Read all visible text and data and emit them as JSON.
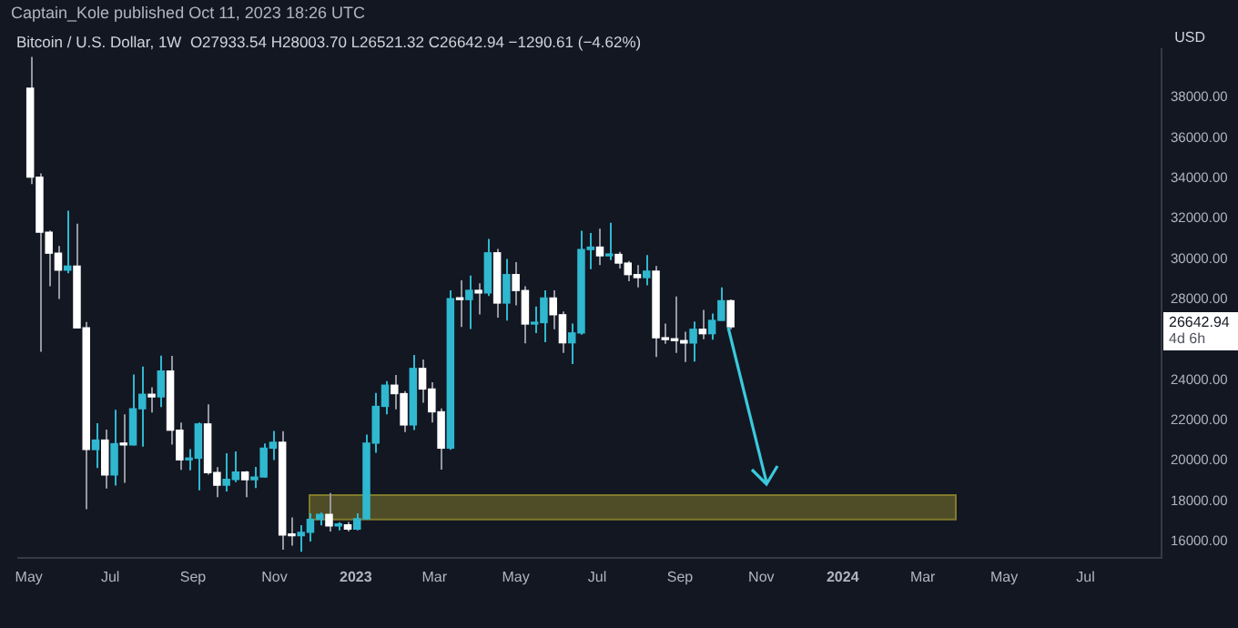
{
  "chart_data": {
    "type": "candlestick",
    "title": "Bitcoin / U.S. Dollar, 1W",
    "subtitle": "O27933.54  H28003.70  L26521.32  C26642.94  −1290.61 (−4.62%)",
    "ylabel": "USD",
    "annotations": [
      "Captain_Kole published Oct 11, 2023 18:26 UTC",
      "26642.94",
      "4d 6h"
    ],
    "x": [
      "2022-05-02",
      "2022-05-09",
      "2022-05-16",
      "2022-05-23",
      "2022-05-30",
      "2022-06-06",
      "2022-06-13",
      "2022-06-20",
      "2022-06-27",
      "2022-07-04",
      "2022-07-11",
      "2022-07-18",
      "2022-07-25",
      "2022-08-01",
      "2022-08-08",
      "2022-08-15",
      "2022-08-22",
      "2022-08-29",
      "2022-09-05",
      "2022-09-12",
      "2022-09-19",
      "2022-09-26",
      "2022-10-03",
      "2022-10-10",
      "2022-10-17",
      "2022-10-24",
      "2022-10-31",
      "2022-11-07",
      "2022-11-14",
      "2022-11-21",
      "2022-11-28",
      "2022-12-05",
      "2022-12-12",
      "2022-12-19",
      "2022-12-26",
      "2023-01-02",
      "2023-01-09",
      "2023-01-16",
      "2023-01-23",
      "2023-01-30",
      "2023-02-06",
      "2023-02-13",
      "2023-02-20",
      "2023-02-27",
      "2023-03-06",
      "2023-03-13",
      "2023-03-20",
      "2023-03-27",
      "2023-04-03",
      "2023-04-10",
      "2023-04-17",
      "2023-04-24",
      "2023-05-01",
      "2023-05-08",
      "2023-05-15",
      "2023-05-22",
      "2023-05-29",
      "2023-06-05",
      "2023-06-12",
      "2023-06-19",
      "2023-06-26",
      "2023-07-03",
      "2023-07-10",
      "2023-07-17",
      "2023-07-24",
      "2023-07-31",
      "2023-08-07",
      "2023-08-14",
      "2023-08-21",
      "2023-08-28",
      "2023-09-04",
      "2023-09-11",
      "2023-09-18",
      "2023-09-25",
      "2023-10-02",
      "2023-10-09"
    ],
    "ohlc": [
      [
        38470,
        40020,
        33710,
        34060
      ],
      [
        34060,
        34240,
        25400,
        31330
      ],
      [
        31330,
        31420,
        28650,
        30290
      ],
      [
        30290,
        30650,
        28020,
        29450
      ],
      [
        29450,
        32400,
        29300,
        29650
      ],
      [
        29650,
        31750,
        26560,
        26590
      ],
      [
        26590,
        26880,
        17600,
        20560
      ],
      [
        20560,
        21870,
        19640,
        21030
      ],
      [
        21030,
        21550,
        18630,
        19300
      ],
      [
        19300,
        22530,
        18780,
        20850
      ],
      [
        20850,
        22300,
        18910,
        20790
      ],
      [
        20790,
        24280,
        20760,
        22580
      ],
      [
        22580,
        24670,
        20700,
        23300
      ],
      [
        23300,
        23650,
        22400,
        23170
      ],
      [
        23170,
        25210,
        22670,
        24450
      ],
      [
        24450,
        25200,
        20800,
        21520
      ],
      [
        21520,
        21900,
        19550,
        20050
      ],
      [
        20050,
        20580,
        19530,
        20130
      ],
      [
        20130,
        21900,
        18540,
        21830
      ],
      [
        21830,
        22800,
        19320,
        19420
      ],
      [
        19420,
        19690,
        18200,
        18800
      ],
      [
        18800,
        20380,
        18480,
        19080
      ],
      [
        19080,
        20470,
        18950,
        19440
      ],
      [
        19440,
        19500,
        18200,
        19070
      ],
      [
        19070,
        19700,
        18650,
        19200
      ],
      [
        19200,
        20860,
        19180,
        20630
      ],
      [
        20630,
        21480,
        20040,
        20920
      ],
      [
        20920,
        21470,
        15600,
        16320
      ],
      [
        16330,
        17200,
        15800,
        16290
      ],
      [
        16290,
        16810,
        15500,
        16460
      ],
      [
        16460,
        17400,
        16000,
        17100
      ],
      [
        17100,
        17430,
        16800,
        17350
      ],
      [
        17350,
        18400,
        16500,
        16780
      ],
      [
        16780,
        16960,
        16550,
        16830
      ],
      [
        16830,
        16970,
        16500,
        16620
      ],
      [
        16620,
        17400,
        16560,
        17130
      ],
      [
        17130,
        21300,
        17100,
        20880
      ],
      [
        20880,
        23370,
        20400,
        22700
      ],
      [
        22700,
        23950,
        22300,
        23750
      ],
      [
        23750,
        24250,
        22550,
        23330
      ],
      [
        23330,
        23450,
        21430,
        21780
      ],
      [
        21780,
        25250,
        21530,
        24580
      ],
      [
        24580,
        25020,
        22880,
        23560
      ],
      [
        23560,
        23890,
        21900,
        22430
      ],
      [
        22430,
        22600,
        19570,
        20630
      ],
      [
        20630,
        28450,
        20550,
        28040
      ],
      [
        28040,
        28950,
        26630,
        27990
      ],
      [
        27990,
        29180,
        26530,
        28450
      ],
      [
        28450,
        28800,
        27250,
        28320
      ],
      [
        28320,
        31000,
        28170,
        30310
      ],
      [
        30310,
        30500,
        27100,
        27820
      ],
      [
        27820,
        30000,
        26950,
        29230
      ],
      [
        29230,
        29850,
        27700,
        28440
      ],
      [
        28440,
        28650,
        25820,
        26780
      ],
      [
        26780,
        27650,
        26330,
        26850
      ],
      [
        26850,
        28450,
        25880,
        28070
      ],
      [
        28070,
        28450,
        26520,
        27240
      ],
      [
        27240,
        27400,
        25350,
        25850
      ],
      [
        25850,
        26800,
        24800,
        26340
      ],
      [
        26340,
        31400,
        26250,
        30470
      ],
      [
        30470,
        31290,
        29500,
        30590
      ],
      [
        30590,
        31500,
        29700,
        30160
      ],
      [
        30160,
        31800,
        29950,
        30230
      ],
      [
        30230,
        30350,
        29530,
        29800
      ],
      [
        29800,
        29900,
        28900,
        29230
      ],
      [
        29230,
        29700,
        28600,
        29080
      ],
      [
        29080,
        30200,
        28700,
        29400
      ],
      [
        29400,
        29660,
        25150,
        26100
      ],
      [
        26100,
        26800,
        25800,
        26010
      ],
      [
        26010,
        28150,
        25350,
        25960
      ],
      [
        25960,
        26400,
        24900,
        25840
      ],
      [
        25840,
        26900,
        24920,
        26520
      ],
      [
        26520,
        27480,
        26030,
        26300
      ],
      [
        26300,
        27300,
        26000,
        26960
      ],
      [
        26960,
        28600,
        26950,
        27933.54
      ],
      [
        27933.54,
        28003.7,
        26521.32,
        26642.94
      ]
    ],
    "colors": [
      "#ffffff",
      "#ffffff",
      "#ffffff",
      "#ffffff",
      "#2fb8d0",
      "#ffffff",
      "#ffffff",
      "#2fb8d0",
      "#ffffff",
      "#2fb8d0",
      "#ffffff",
      "#2fb8d0",
      "#2fb8d0",
      "#ffffff",
      "#2fb8d0",
      "#ffffff",
      "#ffffff",
      "#2fb8d0",
      "#2fb8d0",
      "#ffffff",
      "#ffffff",
      "#2fb8d0",
      "#2fb8d0",
      "#ffffff",
      "#2fb8d0",
      "#2fb8d0",
      "#2fb8d0",
      "#ffffff",
      "#ffffff",
      "#2fb8d0",
      "#2fb8d0",
      "#2fb8d0",
      "#ffffff",
      "#2fb8d0",
      "#ffffff",
      "#2fb8d0",
      "#2fb8d0",
      "#2fb8d0",
      "#2fb8d0",
      "#ffffff",
      "#ffffff",
      "#2fb8d0",
      "#ffffff",
      "#ffffff",
      "#ffffff",
      "#2fb8d0",
      "#ffffff",
      "#2fb8d0",
      "#ffffff",
      "#2fb8d0",
      "#ffffff",
      "#2fb8d0",
      "#ffffff",
      "#ffffff",
      "#2fb8d0",
      "#2fb8d0",
      "#ffffff",
      "#ffffff",
      "#2fb8d0",
      "#2fb8d0",
      "#2fb8d0",
      "#ffffff",
      "#2fb8d0",
      "#ffffff",
      "#ffffff",
      "#ffffff",
      "#2fb8d0",
      "#ffffff",
      "#ffffff",
      "#ffffff",
      "#ffffff",
      "#2fb8d0",
      "#ffffff",
      "#2fb8d0",
      "#2fb8d0",
      "#ffffff"
    ],
    "xlim": [
      "2022-04-23",
      "2024-08-27"
    ],
    "xticks": [
      {
        "value": "2022-05-01",
        "label": "May"
      },
      {
        "value": "2022-07-01",
        "label": "Jul"
      },
      {
        "value": "2022-09-01",
        "label": "Sep"
      },
      {
        "value": "2022-11-01",
        "label": "Nov"
      },
      {
        "value": "2023-01-01",
        "label": "2023"
      },
      {
        "value": "2023-03-01",
        "label": "Mar"
      },
      {
        "value": "2023-05-01",
        "label": "May"
      },
      {
        "value": "2023-07-01",
        "label": "Jul"
      },
      {
        "value": "2023-09-01",
        "label": "Sep"
      },
      {
        "value": "2023-11-01",
        "label": "Nov"
      },
      {
        "value": "2024-01-01",
        "label": "2024"
      },
      {
        "value": "2024-03-01",
        "label": "Mar"
      },
      {
        "value": "2024-05-01",
        "label": "May"
      },
      {
        "value": "2024-07-01",
        "label": "Jul"
      }
    ],
    "ylim": [
      15200,
      40400
    ],
    "yticks": [
      {
        "value": 16000,
        "label": "16000.00"
      },
      {
        "value": 18000,
        "label": "18000.00"
      },
      {
        "value": 20000,
        "label": "20000.00"
      },
      {
        "value": 22000,
        "label": "22000.00"
      },
      {
        "value": 24000,
        "label": "24000.00"
      },
      {
        "value": 28000,
        "label": "28000.00"
      },
      {
        "value": 30000,
        "label": "30000.00"
      },
      {
        "value": 32000,
        "label": "32000.00"
      },
      {
        "value": 34000,
        "label": "34000.00"
      },
      {
        "value": 36000,
        "label": "36000.00"
      },
      {
        "value": 38000,
        "label": "38000.00"
      }
    ],
    "bands": [
      {
        "axis": "y",
        "from": 17100,
        "to": 18300,
        "color": "#807a2c"
      }
    ],
    "grid": false,
    "legend": false
  }
}
